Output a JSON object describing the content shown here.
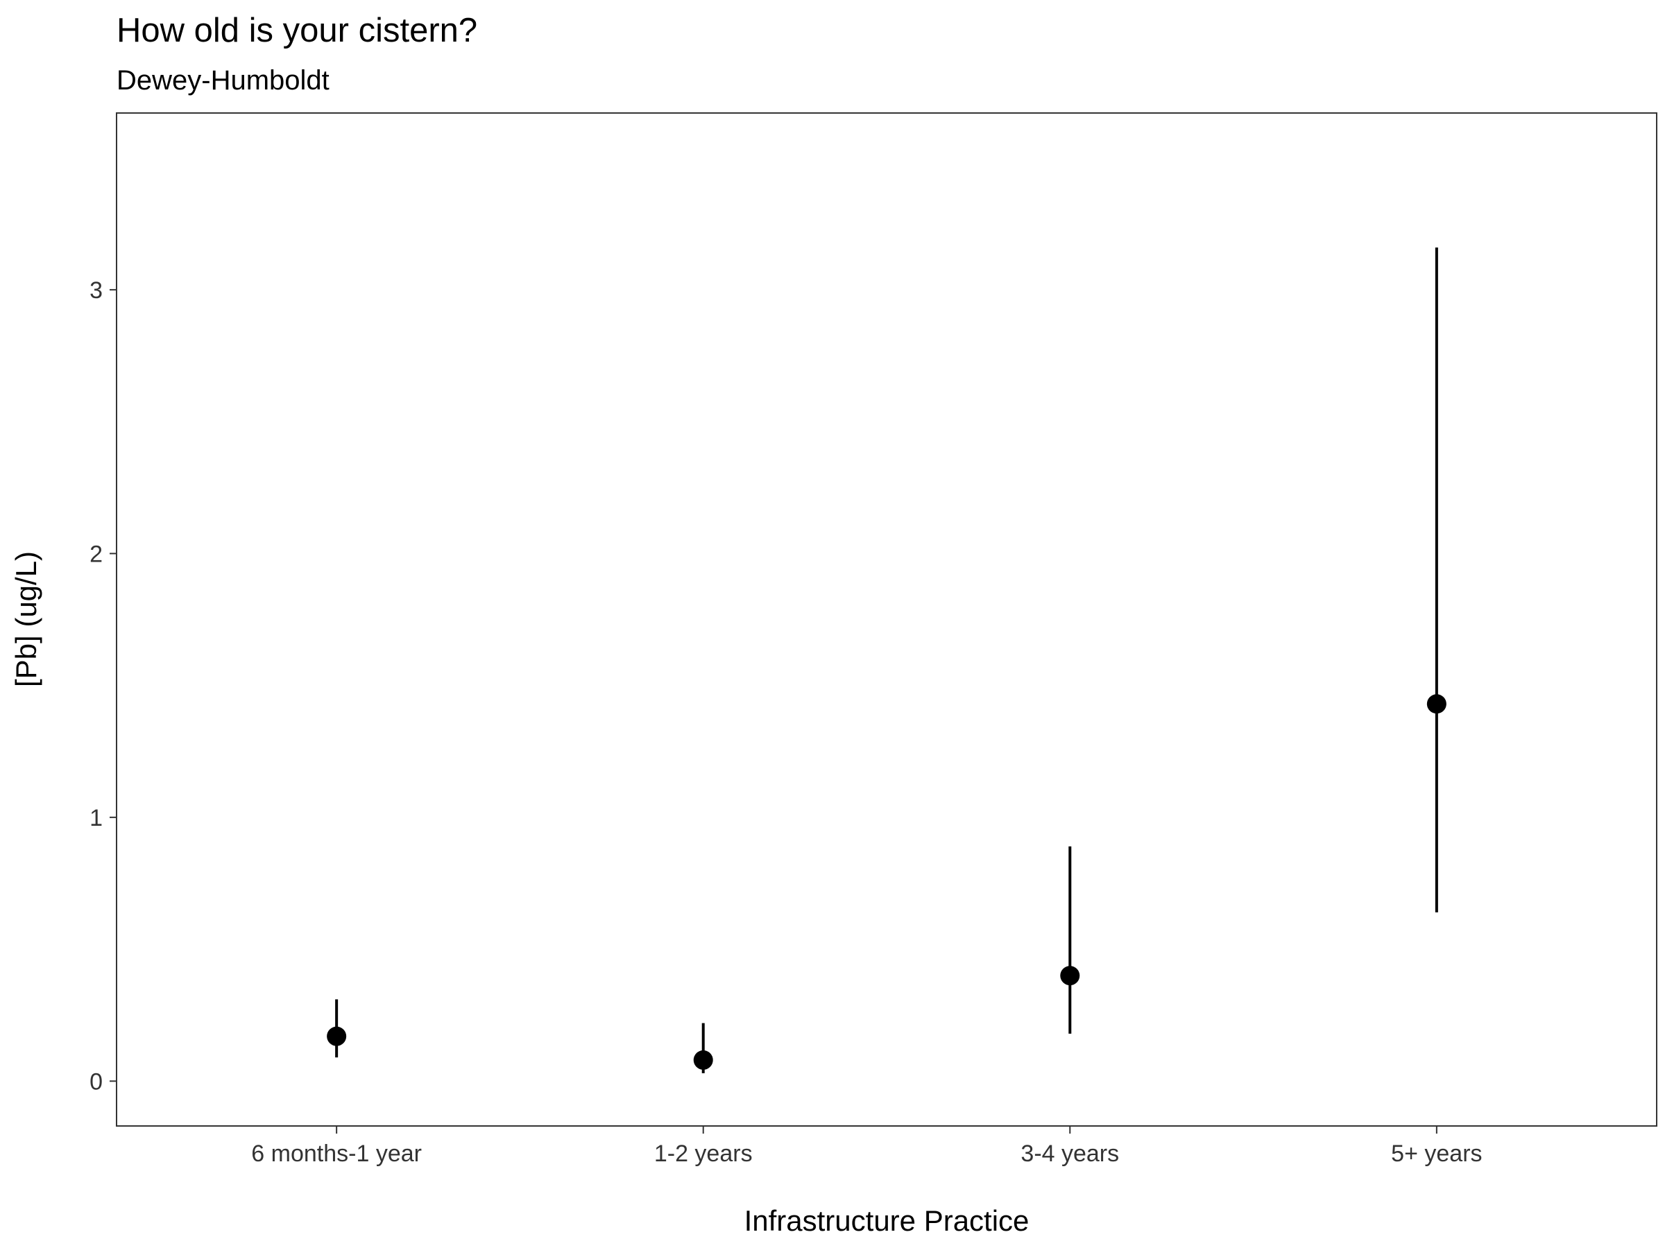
{
  "chart_data": {
    "type": "scatter",
    "title": "How old is your cistern?",
    "subtitle": "Dewey-Humboldt",
    "xlabel": "Infrastructure Practice",
    "ylabel": "[Pb] (ug/L)",
    "categories": [
      "6 months-1 year",
      "1-2 years",
      "3-4 years",
      "5+ years"
    ],
    "series": [
      {
        "values": [
          0.17,
          0.08,
          0.4,
          1.43
        ],
        "lower": [
          0.09,
          0.03,
          0.18,
          0.64
        ],
        "upper": [
          0.31,
          0.22,
          0.89,
          3.16
        ]
      }
    ],
    "ylim": [
      -0.17,
      3.67
    ],
    "yticks": [
      0,
      1,
      2,
      3
    ],
    "grid": false,
    "legend": "none",
    "colors": {
      "points": "#000000",
      "panel_border": "#333333",
      "ticks": "#333333"
    }
  }
}
